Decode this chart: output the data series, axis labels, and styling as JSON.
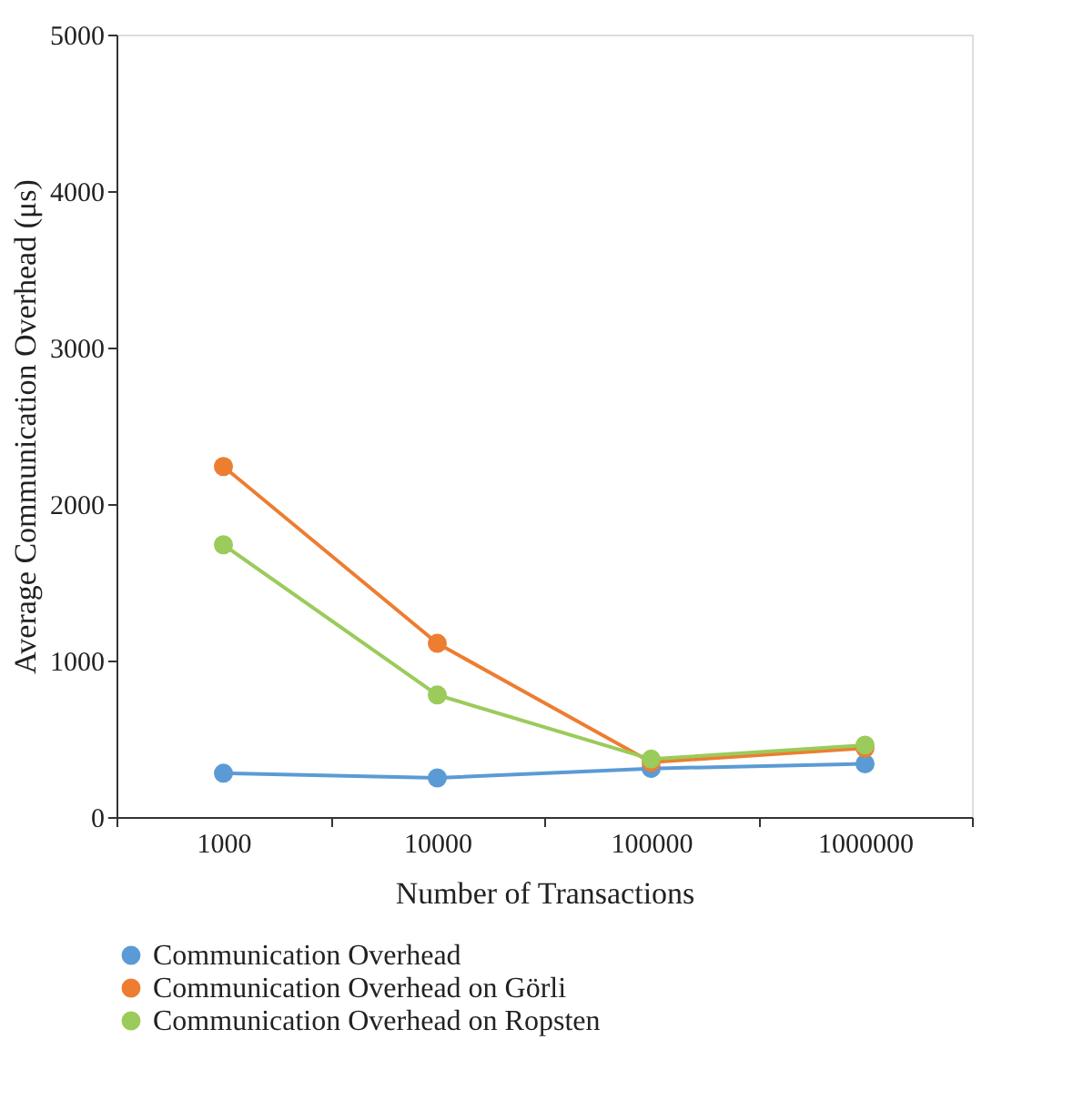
{
  "chart_data": {
    "type": "line",
    "xlabel": "Number of Transactions",
    "ylabel": "Average Communication Overhead (μs)",
    "categories": [
      "1000",
      "10000",
      "100000",
      "1000000"
    ],
    "series": [
      {
        "name": "Communication Overhead",
        "color": "#5b9bd5",
        "values": [
          280,
          250,
          310,
          340
        ]
      },
      {
        "name": "Communication Overhead on Görli",
        "color": "#ed7d31",
        "values": [
          2240,
          1110,
          350,
          440
        ]
      },
      {
        "name": "Communication Overhead on Ropsten",
        "color": "#9bcb5b",
        "values": [
          1740,
          780,
          370,
          460
        ]
      }
    ],
    "ylim": [
      0,
      5000
    ],
    "yticks": [
      0,
      1000,
      2000,
      3000,
      4000,
      5000
    ],
    "grid": false,
    "legend": "bottom",
    "marker": "circle",
    "line_style": "solid"
  }
}
